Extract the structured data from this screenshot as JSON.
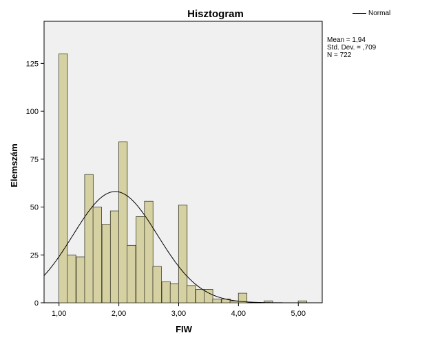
{
  "chart_data": {
    "type": "bar",
    "title": "Hisztogram",
    "xlabel": "FIW",
    "ylabel": "Elemszám",
    "xlim": [
      0.75,
      5.4
    ],
    "ylim": [
      0,
      147
    ],
    "x_ticks": [
      1.0,
      2.0,
      3.0,
      4.0,
      5.0
    ],
    "x_tick_labels": [
      "1,00",
      "2,00",
      "3,00",
      "4,00",
      "5,00"
    ],
    "y_ticks": [
      0,
      25,
      50,
      75,
      100,
      125
    ],
    "y_tick_labels": [
      "0",
      "25",
      "50",
      "75",
      "100",
      "125"
    ],
    "bin_width": 0.143,
    "bars": [
      {
        "x": 1.07,
        "value": 130
      },
      {
        "x": 1.21,
        "value": 25
      },
      {
        "x": 1.36,
        "value": 24
      },
      {
        "x": 1.5,
        "value": 67
      },
      {
        "x": 1.64,
        "value": 50
      },
      {
        "x": 1.79,
        "value": 41
      },
      {
        "x": 1.93,
        "value": 48
      },
      {
        "x": 2.07,
        "value": 84
      },
      {
        "x": 2.21,
        "value": 30
      },
      {
        "x": 2.36,
        "value": 45
      },
      {
        "x": 2.5,
        "value": 53
      },
      {
        "x": 2.64,
        "value": 19
      },
      {
        "x": 2.79,
        "value": 11
      },
      {
        "x": 2.93,
        "value": 10
      },
      {
        "x": 3.07,
        "value": 51
      },
      {
        "x": 3.21,
        "value": 9
      },
      {
        "x": 3.36,
        "value": 7
      },
      {
        "x": 3.5,
        "value": 7
      },
      {
        "x": 3.64,
        "value": 2
      },
      {
        "x": 3.79,
        "value": 2
      },
      {
        "x": 3.93,
        "value": 1
      },
      {
        "x": 4.07,
        "value": 5
      },
      {
        "x": 4.5,
        "value": 1
      },
      {
        "x": 5.07,
        "value": 1
      }
    ],
    "normal_curve": {
      "mean": 1.94,
      "std": 0.709,
      "n": 722
    },
    "legend": {
      "label": "Normal",
      "position": "top-right"
    },
    "stats": [
      "Mean = 1,94",
      "Std. Dev. = ,709",
      "N = 722"
    ],
    "colors": {
      "bar_fill": "#d5d1a2",
      "bar_stroke": "#3b3b2c",
      "plot_bg": "#f0f0f0",
      "curve": "#000000"
    },
    "grid": false
  }
}
